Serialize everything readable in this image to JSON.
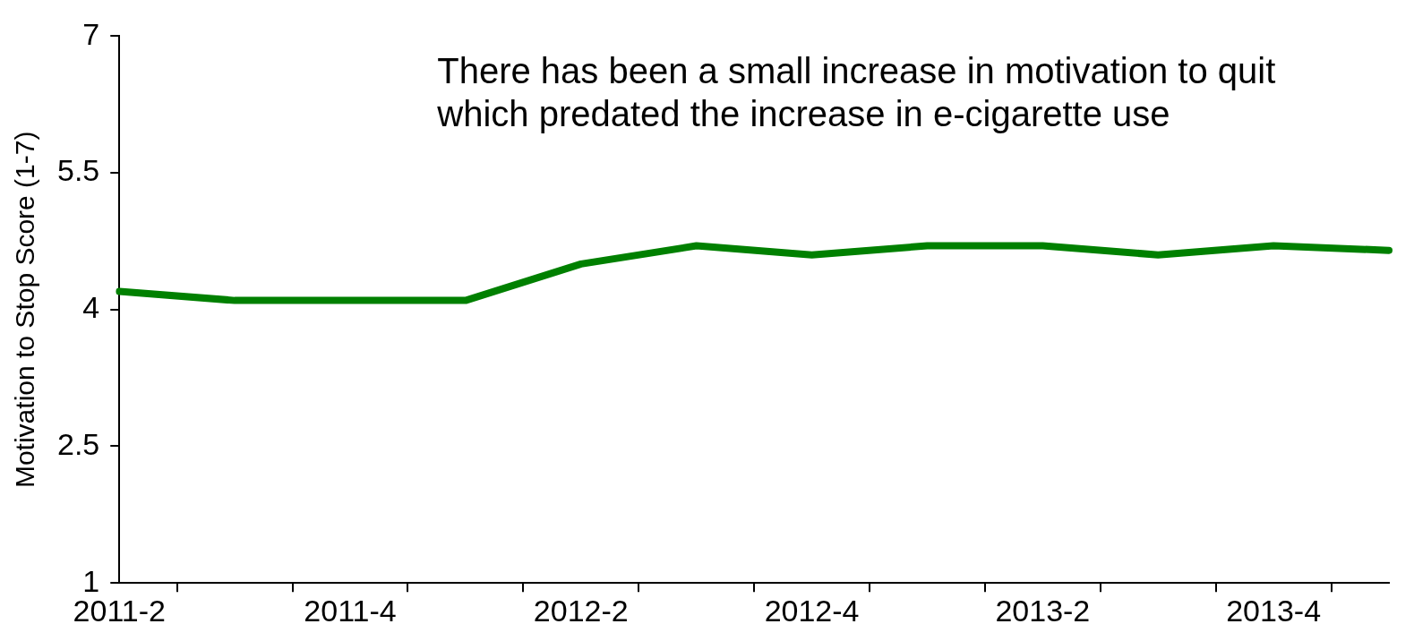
{
  "chart_data": {
    "type": "line",
    "ylabel": "Motivation to Stop Score (1-7)",
    "categories": [
      "2011-2",
      null,
      "2011-4",
      null,
      "2012-2",
      null,
      "2012-4",
      null,
      "2013-2",
      null,
      "2013-4",
      null
    ],
    "series": [
      {
        "color": "#008000",
        "values": [
          4.2,
          4.1,
          4.1,
          4.1,
          4.5,
          4.7,
          4.6,
          4.7,
          4.7,
          4.6,
          4.7,
          4.65
        ]
      }
    ],
    "ylim": [
      1,
      7
    ],
    "yticks": [
      1,
      2.5,
      4,
      5.5,
      7
    ],
    "grid": false,
    "legend": false,
    "marker": "none",
    "line_style": "solid",
    "annotations": [
      "There has been a small increase in motivation to quit which predated the increase in e-cigarette use"
    ]
  }
}
